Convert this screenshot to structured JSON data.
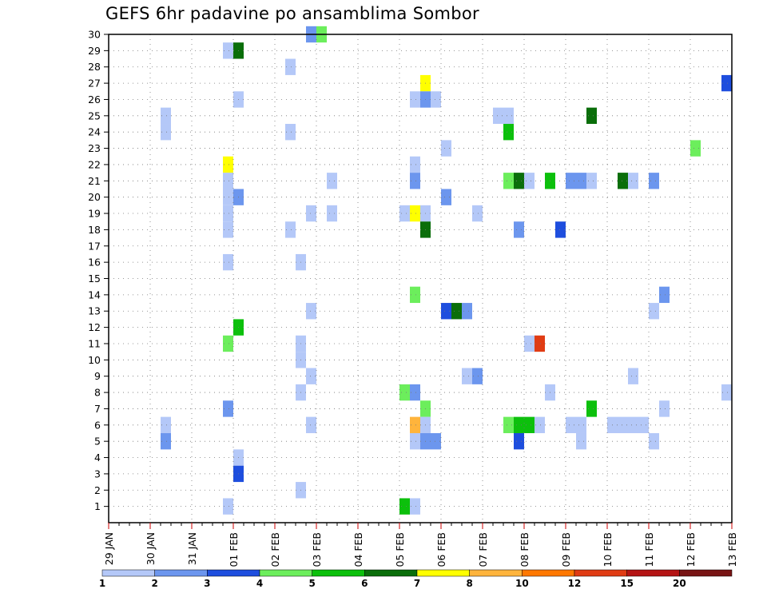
{
  "chart_data": {
    "type": "heatmap",
    "title": "GEFS 6hr padavine po ansamblima Sombor",
    "xlabel": "",
    "ylabel": "",
    "x_tick_labels": [
      "29 JAN",
      "30 JAN",
      "31 JAN",
      "01 FEB",
      "02 FEB",
      "03 FEB",
      "04 FEB",
      "05 FEB",
      "06 FEB",
      "07 FEB",
      "08 FEB",
      "09 FEB",
      "10 FEB",
      "11 FEB",
      "12 FEB",
      "13 FEB"
    ],
    "x_range_days": [
      0,
      15
    ],
    "x_step_days": 0.25,
    "y_tick_labels": [
      1,
      2,
      3,
      4,
      5,
      6,
      7,
      8,
      9,
      10,
      11,
      12,
      13,
      14,
      15,
      16,
      17,
      18,
      19,
      20,
      21,
      22,
      23,
      24,
      25,
      26,
      27,
      28,
      29,
      30
    ],
    "y_range": [
      0,
      30
    ],
    "grid": true,
    "colorbar": {
      "labels": [
        "1",
        "2",
        "3",
        "4",
        "5",
        "6",
        "7",
        "8",
        "10",
        "12",
        "15",
        "20"
      ],
      "bounds": [
        1,
        2,
        3,
        4,
        5,
        6,
        7,
        8,
        10,
        12,
        15,
        20,
        25
      ],
      "colors": [
        "#b4c8f8",
        "#6c96ee",
        "#1e4ede",
        "#6cee5c",
        "#0cc00c",
        "#0a6e0a",
        "#ffff00",
        "#ffb43c",
        "#ff7800",
        "#e03c14",
        "#b41414",
        "#781414"
      ]
    },
    "cells": [
      {
        "d": 2.75,
        "m": 29,
        "v": 1.5
      },
      {
        "d": 3.0,
        "m": 29,
        "v": 6.5
      },
      {
        "d": 4.25,
        "m": 28,
        "v": 1.5
      },
      {
        "d": 7.5,
        "m": 27,
        "v": 7.5
      },
      {
        "d": 14.75,
        "m": 27,
        "v": 3.5
      },
      {
        "d": 3.0,
        "m": 26,
        "v": 1.5
      },
      {
        "d": 7.25,
        "m": 26,
        "v": 1.5
      },
      {
        "d": 7.5,
        "m": 26,
        "v": 2.5
      },
      {
        "d": 7.75,
        "m": 26,
        "v": 1.5
      },
      {
        "d": 1.25,
        "m": 25,
        "v": 1.5
      },
      {
        "d": 9.25,
        "m": 25,
        "v": 1.5
      },
      {
        "d": 9.5,
        "m": 25,
        "v": 1.5
      },
      {
        "d": 11.5,
        "m": 25,
        "v": 6.5
      },
      {
        "d": 1.25,
        "m": 24,
        "v": 1.5
      },
      {
        "d": 4.25,
        "m": 24,
        "v": 1.5
      },
      {
        "d": 9.5,
        "m": 24,
        "v": 5.5
      },
      {
        "d": 8.0,
        "m": 23,
        "v": 1.5
      },
      {
        "d": 14.0,
        "m": 23,
        "v": 4.5
      },
      {
        "d": 2.75,
        "m": 22,
        "v": 7.5
      },
      {
        "d": 7.25,
        "m": 22,
        "v": 1.5
      },
      {
        "d": 2.75,
        "m": 21,
        "v": 1.5
      },
      {
        "d": 5.25,
        "m": 21,
        "v": 1.5
      },
      {
        "d": 7.25,
        "m": 21,
        "v": 2.5
      },
      {
        "d": 9.5,
        "m": 21,
        "v": 4.5
      },
      {
        "d": 9.75,
        "m": 21,
        "v": 6.5
      },
      {
        "d": 10.0,
        "m": 21,
        "v": 1.5
      },
      {
        "d": 10.5,
        "m": 21,
        "v": 5.5
      },
      {
        "d": 11.0,
        "m": 21,
        "v": 2.5
      },
      {
        "d": 11.25,
        "m": 21,
        "v": 2.5
      },
      {
        "d": 11.5,
        "m": 21,
        "v": 1.5
      },
      {
        "d": 12.25,
        "m": 21,
        "v": 6.5
      },
      {
        "d": 12.5,
        "m": 21,
        "v": 1.5
      },
      {
        "d": 13.0,
        "m": 21,
        "v": 2.5
      },
      {
        "d": 2.75,
        "m": 20,
        "v": 1.5
      },
      {
        "d": 3.0,
        "m": 20,
        "v": 2.5
      },
      {
        "d": 8.0,
        "m": 20,
        "v": 2.5
      },
      {
        "d": 2.75,
        "m": 19,
        "v": 1.5
      },
      {
        "d": 4.75,
        "m": 19,
        "v": 1.5
      },
      {
        "d": 5.25,
        "m": 19,
        "v": 1.5
      },
      {
        "d": 7.0,
        "m": 19,
        "v": 1.5
      },
      {
        "d": 7.25,
        "m": 19,
        "v": 7.5
      },
      {
        "d": 7.5,
        "m": 19,
        "v": 1.5
      },
      {
        "d": 8.75,
        "m": 19,
        "v": 1.5
      },
      {
        "d": 2.75,
        "m": 18,
        "v": 1.5
      },
      {
        "d": 4.25,
        "m": 18,
        "v": 1.5
      },
      {
        "d": 7.5,
        "m": 18,
        "v": 6.5
      },
      {
        "d": 9.75,
        "m": 18,
        "v": 2.5
      },
      {
        "d": 10.75,
        "m": 18,
        "v": 3.5
      },
      {
        "d": 2.75,
        "m": 16,
        "v": 1.5
      },
      {
        "d": 4.5,
        "m": 16,
        "v": 1.5
      },
      {
        "d": 7.25,
        "m": 14,
        "v": 4.5
      },
      {
        "d": 13.25,
        "m": 14,
        "v": 2.5
      },
      {
        "d": 4.75,
        "m": 13,
        "v": 1.5
      },
      {
        "d": 8.0,
        "m": 13,
        "v": 3.5
      },
      {
        "d": 8.25,
        "m": 13,
        "v": 6.5
      },
      {
        "d": 8.5,
        "m": 13,
        "v": 2.5
      },
      {
        "d": 13.0,
        "m": 13,
        "v": 1.5
      },
      {
        "d": 3.0,
        "m": 12,
        "v": 5.5
      },
      {
        "d": 2.75,
        "m": 11,
        "v": 4.5
      },
      {
        "d": 4.5,
        "m": 11,
        "v": 1.5
      },
      {
        "d": 10.0,
        "m": 11,
        "v": 1.5
      },
      {
        "d": 10.25,
        "m": 11,
        "v": 13.5
      },
      {
        "d": 4.5,
        "m": 10,
        "v": 1.5
      },
      {
        "d": 4.75,
        "m": 9,
        "v": 1.5
      },
      {
        "d": 8.5,
        "m": 9,
        "v": 1.5
      },
      {
        "d": 8.75,
        "m": 9,
        "v": 2.5
      },
      {
        "d": 12.5,
        "m": 9,
        "v": 1.5
      },
      {
        "d": 4.5,
        "m": 8,
        "v": 1.5
      },
      {
        "d": 7.0,
        "m": 8,
        "v": 4.5
      },
      {
        "d": 7.25,
        "m": 8,
        "v": 2.5
      },
      {
        "d": 10.5,
        "m": 8,
        "v": 1.5
      },
      {
        "d": 14.75,
        "m": 8,
        "v": 1.5
      },
      {
        "d": 2.75,
        "m": 7,
        "v": 2.5
      },
      {
        "d": 7.5,
        "m": 7,
        "v": 4.5
      },
      {
        "d": 11.5,
        "m": 7,
        "v": 5.5
      },
      {
        "d": 13.25,
        "m": 7,
        "v": 1.5
      },
      {
        "d": 1.25,
        "m": 6,
        "v": 1.5
      },
      {
        "d": 4.75,
        "m": 6,
        "v": 1.5
      },
      {
        "d": 7.25,
        "m": 6,
        "v": 9.0
      },
      {
        "d": 7.5,
        "m": 6,
        "v": 1.5
      },
      {
        "d": 9.5,
        "m": 6,
        "v": 4.5
      },
      {
        "d": 9.75,
        "m": 6,
        "v": 5.5
      },
      {
        "d": 10.0,
        "m": 6,
        "v": 5.5
      },
      {
        "d": 10.25,
        "m": 6,
        "v": 1.5
      },
      {
        "d": 11.0,
        "m": 6,
        "v": 1.5
      },
      {
        "d": 11.25,
        "m": 6,
        "v": 1.5
      },
      {
        "d": 12.0,
        "m": 6,
        "v": 1.5
      },
      {
        "d": 12.25,
        "m": 6,
        "v": 1.5
      },
      {
        "d": 12.5,
        "m": 6,
        "v": 1.5
      },
      {
        "d": 12.75,
        "m": 6,
        "v": 1.5
      },
      {
        "d": 1.25,
        "m": 5,
        "v": 2.5
      },
      {
        "d": 7.25,
        "m": 5,
        "v": 1.5
      },
      {
        "d": 7.5,
        "m": 5,
        "v": 2.5
      },
      {
        "d": 7.75,
        "m": 5,
        "v": 2.5
      },
      {
        "d": 9.75,
        "m": 5,
        "v": 3.5
      },
      {
        "d": 11.25,
        "m": 5,
        "v": 1.5
      },
      {
        "d": 13.0,
        "m": 5,
        "v": 1.5
      },
      {
        "d": 3.0,
        "m": 4,
        "v": 1.5
      },
      {
        "d": 3.0,
        "m": 3,
        "v": 3.5
      },
      {
        "d": 4.5,
        "m": 2,
        "v": 1.5
      },
      {
        "d": 2.75,
        "m": 1,
        "v": 1.5
      },
      {
        "d": 7.0,
        "m": 1,
        "v": 5.5
      },
      {
        "d": 7.25,
        "m": 1,
        "v": 1.5
      },
      {
        "d": 4.75,
        "m": 30,
        "v": 2.5
      },
      {
        "d": 5.0,
        "m": 30,
        "v": 4.5
      }
    ]
  }
}
